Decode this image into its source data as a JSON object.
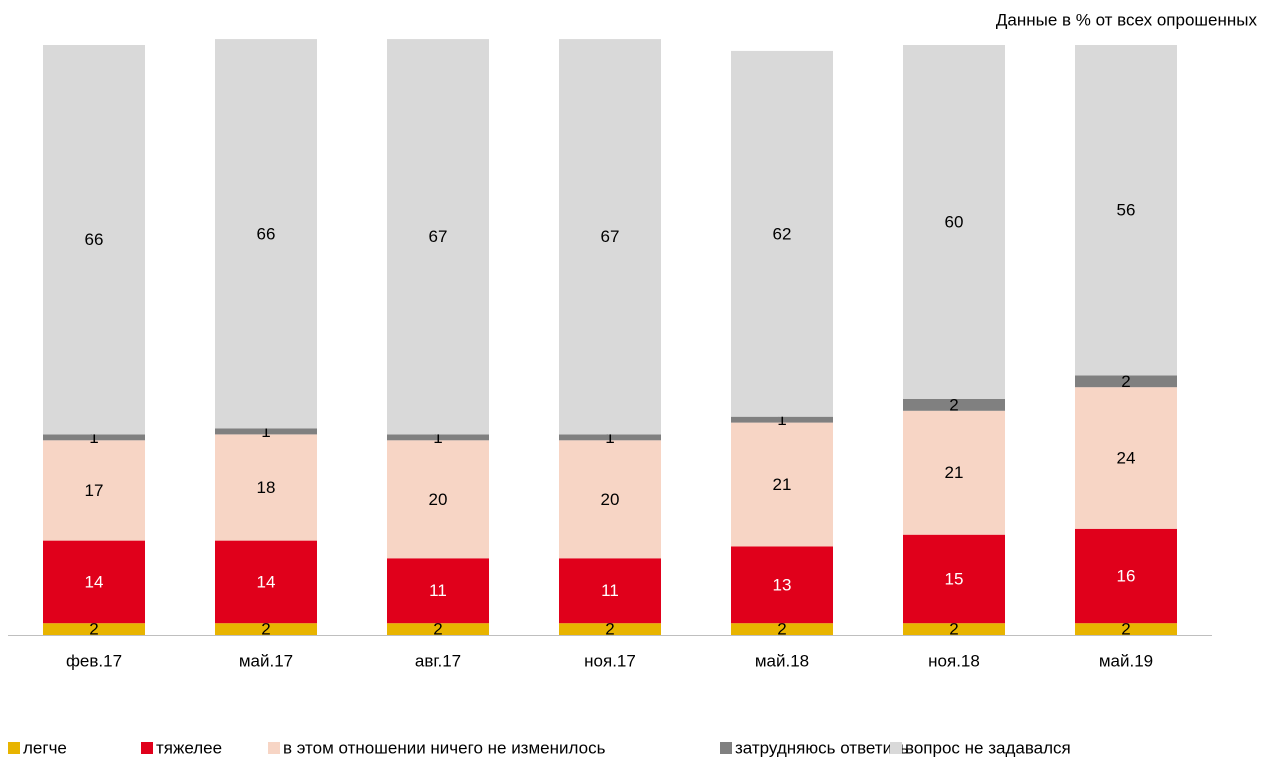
{
  "chart_data": {
    "type": "stacked_bar",
    "note": "Данные в % от всех опрошенных",
    "categories": [
      "фев.17",
      "май.17",
      "авг.17",
      "ноя.17",
      "май.18",
      "ноя.18",
      "май.19"
    ],
    "series": [
      {
        "name": "легче",
        "color": "#e8b400",
        "values": [
          2,
          2,
          2,
          2,
          2,
          2,
          2
        ]
      },
      {
        "name": "тяжелее",
        "color": "#e0001b",
        "values": [
          14,
          14,
          11,
          11,
          13,
          15,
          16
        ]
      },
      {
        "name": "в этом отношении ничего не изменилось",
        "color": "#f7d5c5",
        "values": [
          17,
          18,
          20,
          20,
          21,
          21,
          24
        ]
      },
      {
        "name": "затрудняюсь ответить",
        "color": "#808080",
        "values": [
          1,
          1,
          1,
          1,
          1,
          2,
          2
        ]
      },
      {
        "name": "вопрос не задавался",
        "color": "#d9d9d9",
        "values": [
          66,
          66,
          67,
          67,
          62,
          60,
          56
        ]
      }
    ],
    "ylim": [
      0,
      100
    ],
    "legend": "bottom"
  }
}
